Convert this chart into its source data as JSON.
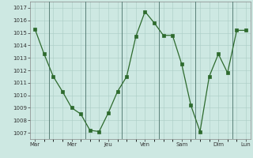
{
  "x_values": [
    0,
    1,
    2,
    3,
    4,
    5,
    6,
    7,
    8,
    9,
    10,
    11,
    12,
    13,
    14,
    15,
    16,
    17,
    18,
    19,
    20,
    21,
    22,
    23
  ],
  "y_values": [
    1015.3,
    1013.3,
    1011.5,
    1010.3,
    1009.0,
    1008.5,
    1007.2,
    1007.1,
    1008.6,
    1010.3,
    1011.5,
    1014.7,
    1016.7,
    1015.8,
    1014.8,
    1014.8,
    1012.5,
    1009.2,
    1007.1,
    1011.5,
    1013.3,
    1011.8,
    1015.2,
    1015.2
  ],
  "x_tick_positions": [
    0,
    4,
    8,
    12,
    16,
    20,
    23
  ],
  "x_tick_labels": [
    "Mar",
    "Mer",
    "Jeu",
    "Ven",
    "Sam",
    "Dim",
    "Lun"
  ],
  "day_lines": [
    2,
    6,
    10,
    14,
    18,
    22
  ],
  "ylim_min": 1006.5,
  "ylim_max": 1017.5,
  "ytick_start": 1007,
  "ytick_end": 1017,
  "line_color": "#2d6a2d",
  "marker_color": "#2d6a2d",
  "bg_color": "#cde8e2",
  "grid_color": "#aaccc5",
  "separator_color": "#5a8078"
}
